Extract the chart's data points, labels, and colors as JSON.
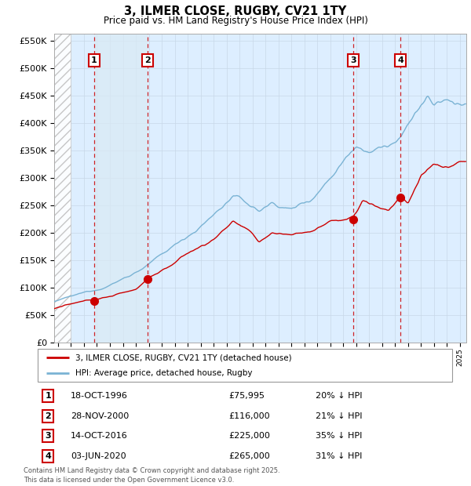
{
  "title": "3, ILMER CLOSE, RUGBY, CV21 1TY",
  "subtitle": "Price paid vs. HM Land Registry's House Price Index (HPI)",
  "footer1": "Contains HM Land Registry data © Crown copyright and database right 2025.",
  "footer2": "This data is licensed under the Open Government Licence v3.0.",
  "legend_line1": "3, ILMER CLOSE, RUGBY, CV21 1TY (detached house)",
  "legend_line2": "HPI: Average price, detached house, Rugby",
  "transactions": [
    {
      "label": "1",
      "date": "18-OCT-1996",
      "date_num": 1996.79,
      "price": 75995,
      "hpi_pct": "20% ↓ HPI"
    },
    {
      "label": "2",
      "date": "28-NOV-2000",
      "date_num": 2000.91,
      "price": 116000,
      "hpi_pct": "21% ↓ HPI"
    },
    {
      "label": "3",
      "date": "14-OCT-2016",
      "date_num": 2016.79,
      "price": 225000,
      "hpi_pct": "35% ↓ HPI"
    },
    {
      "label": "4",
      "date": "03-JUN-2020",
      "date_num": 2020.42,
      "price": 265000,
      "hpi_pct": "31% ↓ HPI"
    }
  ],
  "row_dates": [
    "18-OCT-1996",
    "28-NOV-2000",
    "14-OCT-2016",
    "03-JUN-2020"
  ],
  "row_prices": [
    "£75,995",
    "£116,000",
    "£225,000",
    "£265,000"
  ],
  "row_hpi": [
    "20% ↓ HPI",
    "21% ↓ HPI",
    "35% ↓ HPI",
    "31% ↓ HPI"
  ],
  "ylim": [
    0,
    562500
  ],
  "xlim": [
    1993.7,
    2025.5
  ],
  "hatch_end": 1995.0,
  "red_color": "#cc0000",
  "blue_color": "#7ab3d4",
  "shade_color": "#daeaf5",
  "grid_color": "#c8d8e8",
  "hatch_color": "#c0c0c0",
  "background_color": "#ddeeff",
  "bg_light": "#e8f2fa"
}
